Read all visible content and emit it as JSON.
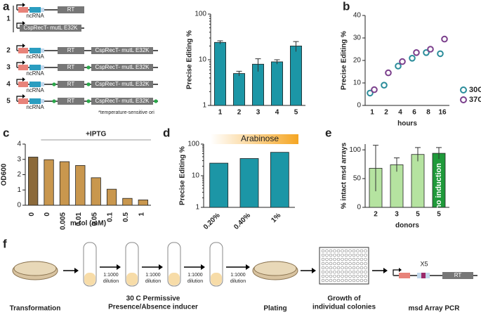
{
  "chart_data": [
    {
      "type": "bar",
      "ylabel": "Precise Editing %",
      "log": true,
      "categories": [
        "1",
        "2",
        "3",
        "4",
        "5"
      ],
      "values": [
        24,
        5,
        8,
        9,
        20
      ],
      "errors": [
        2,
        0.6,
        2.5,
        1,
        5
      ],
      "color": "#1c96a6",
      "ylim": [
        1,
        100
      ],
      "yticks": [
        1,
        10,
        100
      ]
    },
    {
      "type": "scatter",
      "ylabel": "Precise Editing %",
      "xlabel": "hours",
      "categories": [
        "1",
        "2",
        "4",
        "6",
        "8",
        "16"
      ],
      "series": [
        {
          "name": "30C",
          "color": "#2a8c9a",
          "values": [
            5.5,
            9,
            17.5,
            21,
            23.5,
            23
          ]
        },
        {
          "name": "37C",
          "color": "#7b3f8c",
          "values": [
            7,
            14.5,
            19.5,
            23.5,
            25,
            29.5
          ]
        }
      ],
      "ylim": [
        0,
        40
      ],
      "yticks": [
        0,
        10,
        20,
        30,
        40
      ]
    },
    {
      "type": "bar",
      "ylabel": "OD600",
      "xlabel": "m-tol (mM)",
      "annotation": "+IPTG",
      "categories": [
        "0",
        "0",
        "0.005",
        "0.01",
        "0.05",
        "0.1",
        "0.5",
        "1"
      ],
      "values": [
        3.15,
        2.98,
        2.85,
        2.6,
        1.8,
        1.05,
        0.45,
        0.35
      ],
      "colors": [
        "#8c6a3a",
        "#c9974e",
        "#c9974e",
        "#c9974e",
        "#c9974e",
        "#c9974e",
        "#c9974e",
        "#c9974e"
      ],
      "ylim": [
        0,
        4
      ],
      "yticks": [
        0,
        1,
        2,
        3,
        4
      ]
    },
    {
      "type": "bar",
      "ylabel": "Precise Editing %",
      "annotation": "Arabinose",
      "log": true,
      "categories": [
        "0.20%",
        "0.40%",
        "1%"
      ],
      "values": [
        25,
        35,
        55
      ],
      "color": "#1c96a6",
      "ylim": [
        1,
        100
      ],
      "yticks": [
        1,
        10,
        100
      ]
    },
    {
      "type": "bar",
      "ylabel": "% intact msd arrays",
      "xlabel": "donors",
      "annotation": "no induction",
      "categories": [
        "2",
        "3",
        "5",
        "5"
      ],
      "values": [
        68,
        74,
        92,
        94
      ],
      "errors": [
        40,
        12,
        12,
        10
      ],
      "colors": [
        "#b5e3a0",
        "#b5e3a0",
        "#b5e3a0",
        "#1f9a3a"
      ],
      "ylim": [
        0,
        110
      ],
      "yticks": [
        0,
        50,
        100
      ]
    }
  ],
  "figure": {
    "panels": [
      "a",
      "b",
      "c",
      "d",
      "e",
      "f"
    ],
    "constructs": {
      "rows": [
        "1",
        "2",
        "3",
        "4",
        "5"
      ],
      "ncrna": "ncRNA",
      "rt": "RT",
      "recombinase": "CspRecT- mutL E32K",
      "footnote": "*temperature-sensitive ori"
    },
    "workflow": {
      "transformation": "Transformation",
      "dilution": [
        "1:1000",
        "dilution"
      ],
      "condition": [
        "30 C Permissive",
        "Presence/Absence inducer"
      ],
      "plating": "Plating",
      "growth": [
        "Growth of",
        "individual colonies"
      ],
      "pcr": "msd Array PCR",
      "repeat": "X5",
      "rt": "RT"
    }
  }
}
